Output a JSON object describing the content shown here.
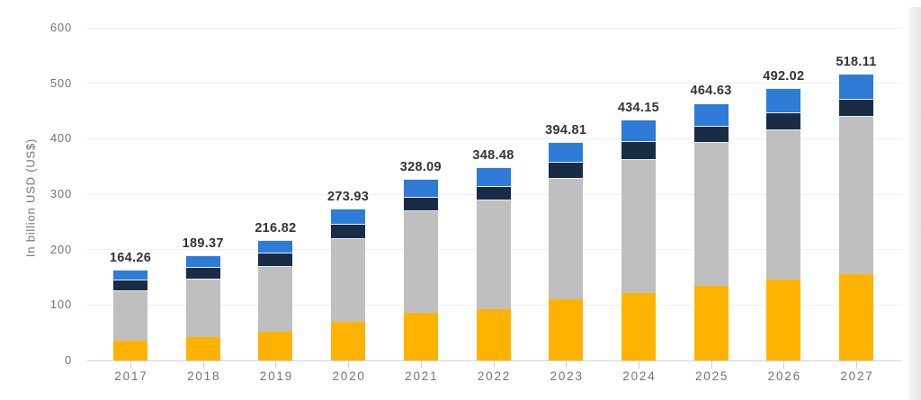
{
  "chart_data": {
    "type": "bar",
    "stacked": true,
    "title": "",
    "ylabel": "In billion USD (US$)",
    "xlabel": "",
    "ylim": [
      0,
      600
    ],
    "yticks": [
      0,
      100,
      200,
      300,
      400,
      500,
      600
    ],
    "grid": true,
    "legend": "none",
    "categories": [
      "2017",
      "2018",
      "2019",
      "2020",
      "2021",
      "2022",
      "2023",
      "2024",
      "2025",
      "2026",
      "2027"
    ],
    "series": [
      {
        "name": "segment-bottom-amber",
        "color": "#FFB300",
        "values": [
          35.2,
          41.5,
          52.0,
          69.0,
          86.5,
          92.0,
          110.0,
          122.0,
          135.0,
          146.0,
          155.5
        ]
      },
      {
        "name": "segment-gray",
        "color": "#BFBFBF",
        "values": [
          92.0,
          105.5,
          119.0,
          151.5,
          184.5,
          198.0,
          220.0,
          242.0,
          259.0,
          271.0,
          285.5
        ]
      },
      {
        "name": "segment-dark-navy",
        "color": "#182C45",
        "values": [
          19.3,
          21.0,
          23.5,
          25.5,
          24.0,
          25.0,
          28.5,
          31.0,
          30.0,
          31.0,
          31.0
        ]
      },
      {
        "name": "segment-top-blue",
        "color": "#2E7BD8",
        "values": [
          17.76,
          21.37,
          22.32,
          27.93,
          33.09,
          33.48,
          36.31,
          39.15,
          40.63,
          44.02,
          46.11
        ]
      }
    ],
    "totals": [
      164.26,
      189.37,
      216.82,
      273.93,
      328.09,
      348.48,
      394.81,
      434.15,
      464.63,
      492.02,
      518.11
    ],
    "total_labels": [
      "164.26",
      "189.37",
      "216.82",
      "273.93",
      "328.09",
      "348.48",
      "394.81",
      "434.15",
      "464.63",
      "492.02",
      "518.11"
    ]
  },
  "colors": {
    "background": "#ffffff",
    "gridline": "#eef0f5",
    "axis_line": "#ccd3e2",
    "axis_tick": "#c9d1e4",
    "axis_text": "#737379",
    "total_label_text": "#333338",
    "side_peek": "#ededed"
  }
}
